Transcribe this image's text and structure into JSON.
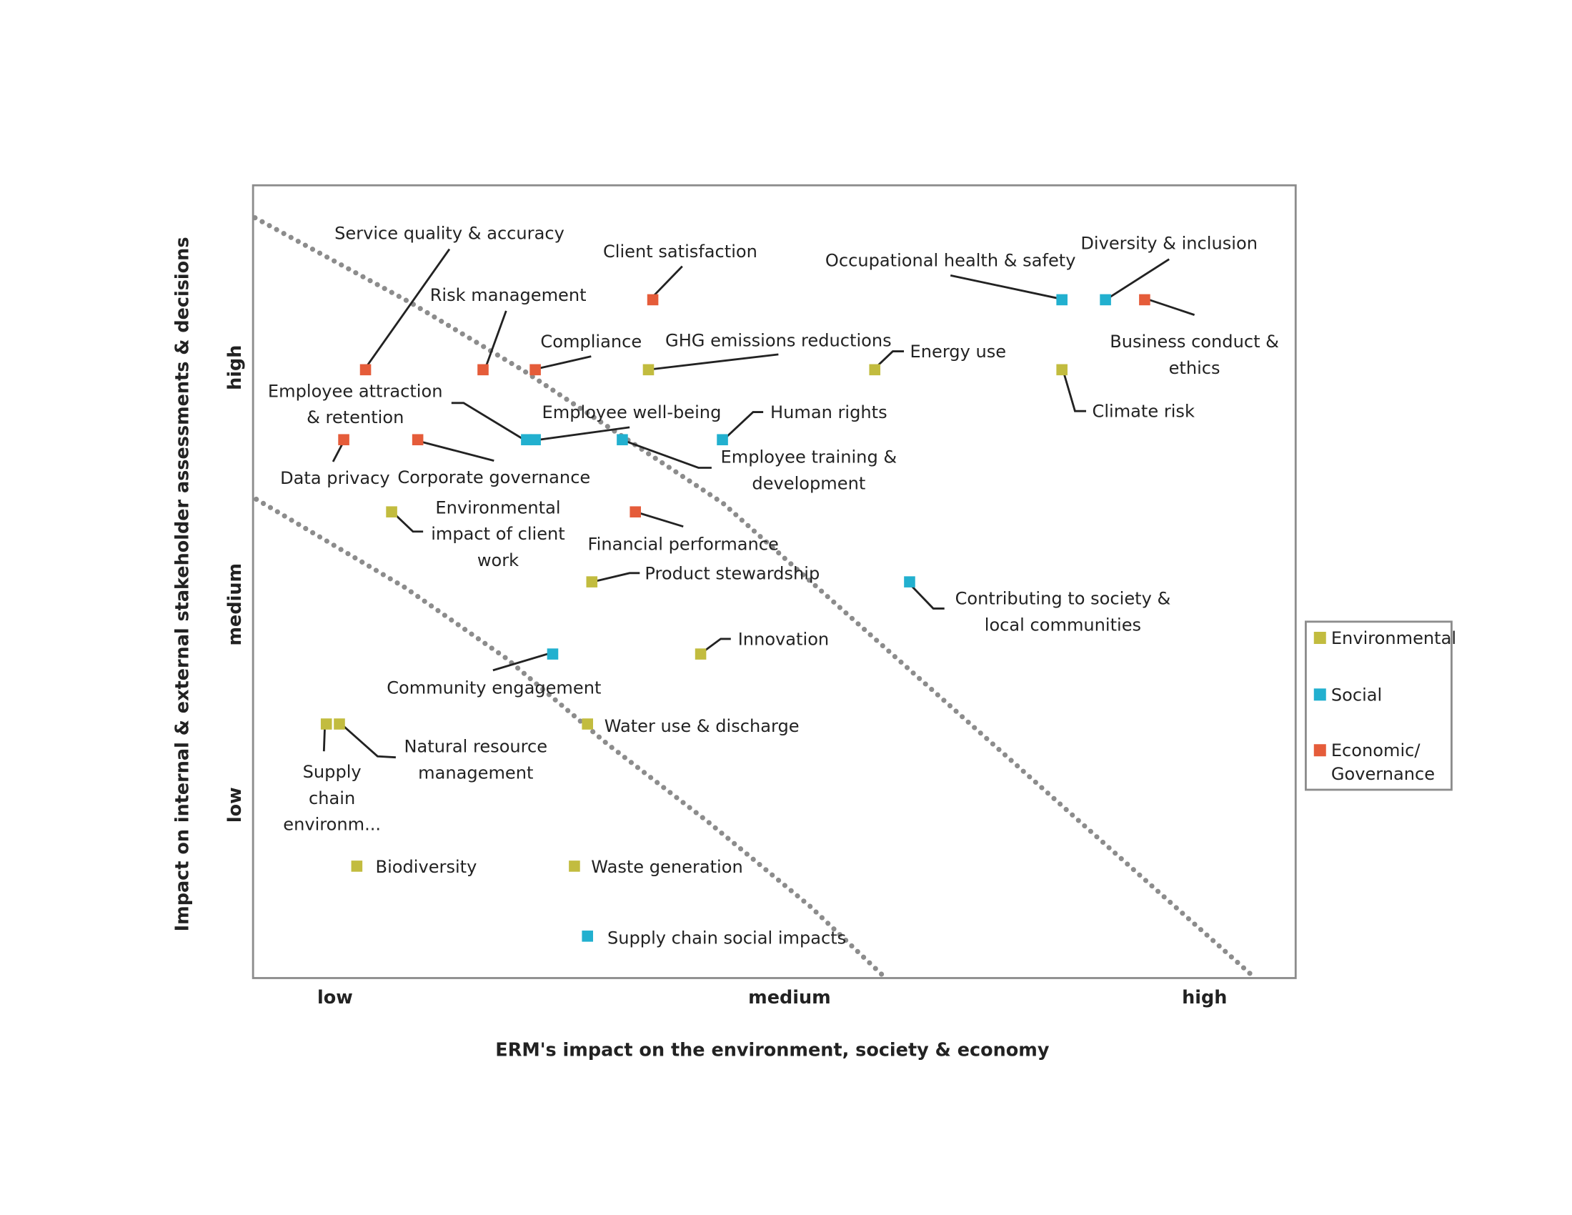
{
  "chart_data": {
    "type": "scatter",
    "title": "",
    "xlabel": "ERM's impact on the environment, society & economy",
    "ylabel": "Impact on internal & external stakeholder assessments & decisions",
    "x_ticks": [
      {
        "value": 1,
        "label": "low"
      },
      {
        "value": 2,
        "label": "medium"
      },
      {
        "value": 3,
        "label": "high"
      }
    ],
    "y_ticks": [
      {
        "value": 1,
        "label": "low"
      },
      {
        "value": 2,
        "label": "medium"
      },
      {
        "value": 3,
        "label": "high"
      }
    ],
    "xlim": [
      0.81,
      3.21
    ],
    "ylim": [
      0.21,
      3.83
    ],
    "grid": false,
    "legend_placement": "right",
    "categories": {
      "env": {
        "name": "Environmental",
        "color": "#c2bc3f"
      },
      "soc": {
        "name": "Social",
        "color": "#22b0cf"
      },
      "eco": {
        "name": "Economic/ Governance",
        "lines": [
          "Economic/",
          "Governance"
        ],
        "color": "#e55c3a"
      }
    },
    "guide_lines": [
      {
        "style": "dotted",
        "color": "#8c8c8c",
        "points": [
          [
            0.816,
            3.685
          ],
          [
            1.174,
            3.296
          ],
          [
            1.433,
            2.986
          ],
          [
            1.891,
            2.38
          ],
          [
            2.556,
            1.199
          ],
          [
            3.114,
            0.208
          ]
        ]
      },
      {
        "style": "dotted",
        "color": "#8c8c8c",
        "points": [
          [
            0.819,
            2.398
          ],
          [
            1.16,
            1.995
          ],
          [
            1.393,
            1.671
          ],
          [
            1.626,
            1.278
          ],
          [
            1.858,
            0.921
          ],
          [
            2.091,
            0.537
          ],
          [
            2.265,
            0.208
          ]
        ]
      }
    ],
    "points": [
      {
        "label": [
          "Service quality & accuracy"
        ],
        "cat": "eco",
        "x": 1.07,
        "y": 2.99
      },
      {
        "label": [
          "Risk management"
        ],
        "cat": "eco",
        "x": 1.34,
        "y": 2.99
      },
      {
        "label": [
          "Compliance"
        ],
        "cat": "eco",
        "x": 1.46,
        "y": 2.99
      },
      {
        "label": [
          "Client satisfaction"
        ],
        "cat": "eco",
        "x": 1.73,
        "y": 3.31
      },
      {
        "label": [
          "GHG emissions reductions"
        ],
        "cat": "env",
        "x": 1.72,
        "y": 2.99
      },
      {
        "label": [
          "Energy use"
        ],
        "cat": "env",
        "x": 2.24,
        "y": 2.99
      },
      {
        "label": [
          "Occupational health & safety"
        ],
        "cat": "soc",
        "x": 2.67,
        "y": 3.31
      },
      {
        "label": [
          "Diversity & inclusion"
        ],
        "cat": "soc",
        "x": 2.77,
        "y": 3.31
      },
      {
        "label": [
          "Business conduct &",
          "ethics"
        ],
        "cat": "eco",
        "x": 2.86,
        "y": 3.31
      },
      {
        "label": [
          "Climate risk"
        ],
        "cat": "env",
        "x": 2.67,
        "y": 2.99
      },
      {
        "label": [
          "Employee attraction",
          "& retention"
        ],
        "cat": "soc",
        "x": 1.44,
        "y": 2.67
      },
      {
        "label": [
          "Employee well-being"
        ],
        "cat": "soc",
        "x": 1.46,
        "y": 2.67
      },
      {
        "label": [
          "Human rights"
        ],
        "cat": "soc",
        "x": 1.89,
        "y": 2.67
      },
      {
        "label": [
          "Employee training &",
          "development"
        ],
        "cat": "soc",
        "x": 1.66,
        "y": 2.67
      },
      {
        "label": [
          "Data privacy"
        ],
        "cat": "eco",
        "x": 1.02,
        "y": 2.67
      },
      {
        "label": [
          "Corporate governance"
        ],
        "cat": "eco",
        "x": 1.19,
        "y": 2.67
      },
      {
        "label": [
          "Environmental",
          "impact of client",
          "work"
        ],
        "cat": "env",
        "x": 1.13,
        "y": 2.34
      },
      {
        "label": [
          "Financial performance"
        ],
        "cat": "eco",
        "x": 1.69,
        "y": 2.34
      },
      {
        "label": [
          "Product stewardship"
        ],
        "cat": "env",
        "x": 1.59,
        "y": 2.02
      },
      {
        "label": [
          "Contributing to society &",
          "local communities"
        ],
        "cat": "soc",
        "x": 2.32,
        "y": 2.02
      },
      {
        "label": [
          "Innovation"
        ],
        "cat": "env",
        "x": 1.84,
        "y": 1.69
      },
      {
        "label": [
          "Community engagement"
        ],
        "cat": "soc",
        "x": 1.5,
        "y": 1.69
      },
      {
        "label": [
          "Water use & discharge"
        ],
        "cat": "env",
        "x": 1.58,
        "y": 1.37
      },
      {
        "label": [
          "Supply",
          "chain",
          "environm..."
        ],
        "cat": "env",
        "x": 0.98,
        "y": 1.37
      },
      {
        "label": [
          "Natural resource",
          "management"
        ],
        "cat": "env",
        "x": 1.01,
        "y": 1.37
      },
      {
        "label": [
          "Biodiversity"
        ],
        "cat": "env",
        "x": 1.05,
        "y": 0.72
      },
      {
        "label": [
          "Waste generation"
        ],
        "cat": "env",
        "x": 1.55,
        "y": 0.72
      },
      {
        "label": [
          "Supply chain social impacts"
        ],
        "cat": "soc",
        "x": 1.58,
        "y": 0.4
      }
    ]
  }
}
